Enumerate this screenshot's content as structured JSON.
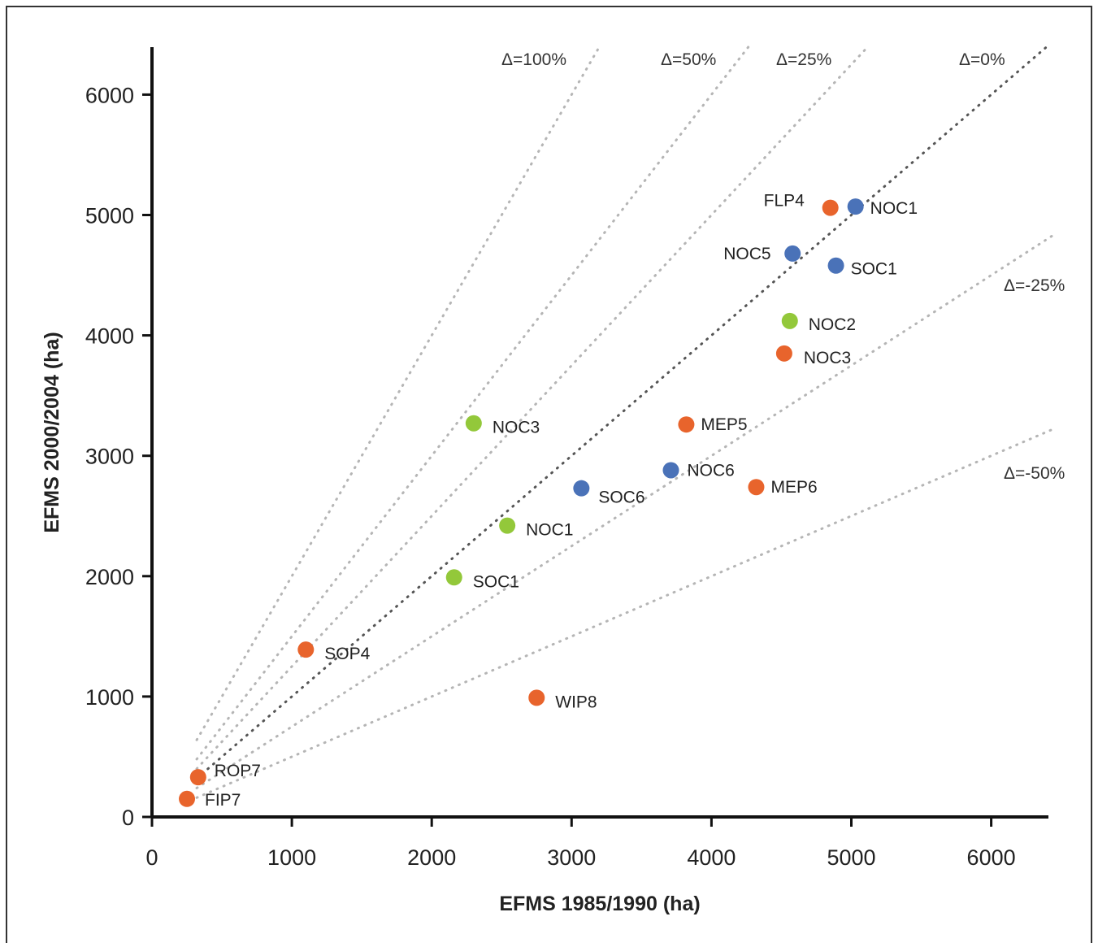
{
  "chart_data": {
    "type": "scatter",
    "xlabel": "EFMS 1985/1990 (ha)",
    "ylabel": "EFMS 2000/2004 (ha)",
    "xlim": [
      0,
      6400
    ],
    "ylim": [
      0,
      6400
    ],
    "xticks": [
      "0",
      "1000",
      "2000",
      "3000",
      "4000",
      "5000",
      "6000"
    ],
    "yticks": [
      "0",
      "1000",
      "2000",
      "3000",
      "4000",
      "5000",
      "6000"
    ],
    "grid": false,
    "colors": {
      "orange": "#e8642c",
      "blue": "#4a72b8",
      "green": "#93c83a"
    },
    "reference_lines": [
      {
        "label": "Δ=100%",
        "slope": 2.0,
        "style": "light"
      },
      {
        "label": "Δ=50%",
        "slope": 1.5,
        "style": "light"
      },
      {
        "label": "Δ=25%",
        "slope": 1.25,
        "style": "light"
      },
      {
        "label": "Δ=0%",
        "slope": 1.0,
        "style": "dark"
      },
      {
        "label": "Δ=-25%",
        "slope": 0.75,
        "style": "light"
      },
      {
        "label": "Δ=-50%",
        "slope": 0.5,
        "style": "light"
      }
    ],
    "points": [
      {
        "label": "FLP4",
        "x": 4850,
        "y": 5060,
        "color": "orange"
      },
      {
        "label": "NOC1",
        "x": 5030,
        "y": 5070,
        "color": "blue"
      },
      {
        "label": "NOC5",
        "x": 4580,
        "y": 4680,
        "color": "blue"
      },
      {
        "label": "SOC1",
        "x": 4890,
        "y": 4580,
        "color": "blue"
      },
      {
        "label": "NOC2",
        "x": 4560,
        "y": 4120,
        "color": "green"
      },
      {
        "label": "NOC3",
        "x": 4520,
        "y": 3850,
        "color": "orange"
      },
      {
        "label": "NOC3",
        "x": 2300,
        "y": 3270,
        "color": "green"
      },
      {
        "label": "MEP5",
        "x": 3820,
        "y": 3260,
        "color": "orange"
      },
      {
        "label": "NOC6",
        "x": 3710,
        "y": 2880,
        "color": "blue"
      },
      {
        "label": "MEP6",
        "x": 4320,
        "y": 2740,
        "color": "orange"
      },
      {
        "label": "SOC6",
        "x": 3070,
        "y": 2730,
        "color": "blue"
      },
      {
        "label": "NOC1",
        "x": 2540,
        "y": 2420,
        "color": "green"
      },
      {
        "label": "SOC1",
        "x": 2160,
        "y": 1990,
        "color": "green"
      },
      {
        "label": "SOP4",
        "x": 1100,
        "y": 1390,
        "color": "orange"
      },
      {
        "label": "WIP8",
        "x": 2750,
        "y": 990,
        "color": "orange"
      },
      {
        "label": "ROP7",
        "x": 330,
        "y": 330,
        "color": "orange"
      },
      {
        "label": "FIP7",
        "x": 250,
        "y": 150,
        "color": "orange"
      }
    ]
  }
}
